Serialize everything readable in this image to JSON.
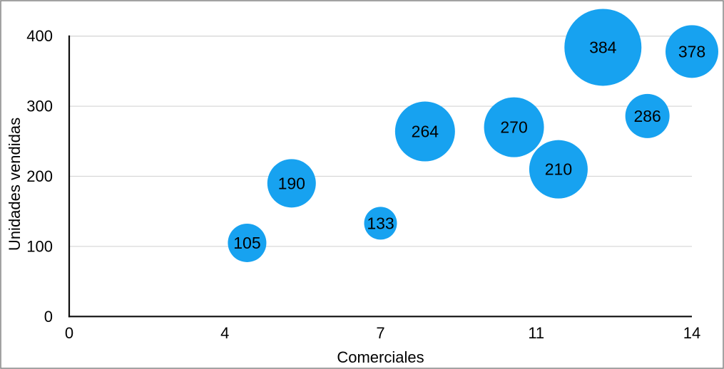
{
  "chart_data": {
    "type": "bubble",
    "title": "",
    "xlabel": "Comerciales",
    "ylabel": "Unidades vendidas",
    "xlim": [
      0,
      14
    ],
    "ylim": [
      0,
      400
    ],
    "grid": "horizontal",
    "legend": "none",
    "x_ticks": [
      {
        "value": 0,
        "label": "0"
      },
      {
        "value": 3.5,
        "label": "4"
      },
      {
        "value": 7,
        "label": "7"
      },
      {
        "value": 10.5,
        "label": "11"
      },
      {
        "value": 14,
        "label": "14"
      }
    ],
    "y_ticks": [
      {
        "value": 0,
        "label": "0"
      },
      {
        "value": 100,
        "label": "100"
      },
      {
        "value": 200,
        "label": "200"
      },
      {
        "value": 300,
        "label": "300"
      },
      {
        "value": 400,
        "label": "400"
      }
    ],
    "points": [
      {
        "x": 4,
        "y": 105,
        "label": "105",
        "radius_px": 27
      },
      {
        "x": 5,
        "y": 190,
        "label": "190",
        "radius_px": 34
      },
      {
        "x": 7,
        "y": 133,
        "label": "133",
        "radius_px": 23
      },
      {
        "x": 8,
        "y": 264,
        "label": "264",
        "radius_px": 42
      },
      {
        "x": 10,
        "y": 270,
        "label": "270",
        "radius_px": 42
      },
      {
        "x": 11,
        "y": 210,
        "label": "210",
        "radius_px": 41
      },
      {
        "x": 12,
        "y": 384,
        "label": "384",
        "radius_px": 54
      },
      {
        "x": 13,
        "y": 286,
        "label": "286",
        "radius_px": 31
      },
      {
        "x": 14,
        "y": 378,
        "label": "378",
        "radius_px": 37
      }
    ],
    "colors": {
      "bubble": "#17A2F0",
      "bubble_label": "#000000",
      "axis_line": "#0d0d0d",
      "gridline": "#d8d8d8",
      "text": "#000000",
      "frame_border": "#8c8c8c",
      "background": "#ffffff"
    }
  }
}
